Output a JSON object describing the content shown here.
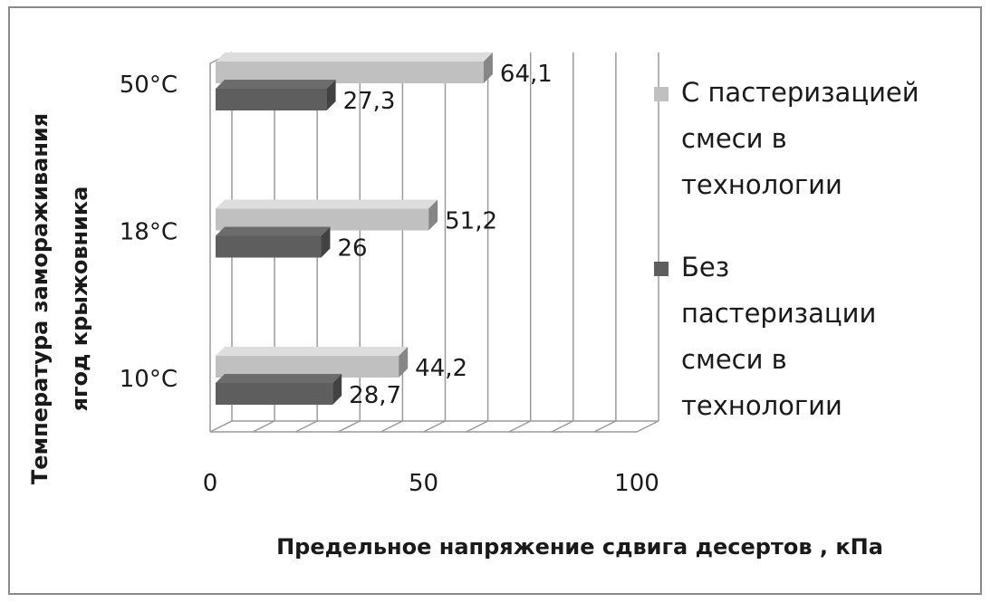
{
  "chart_data": {
    "type": "bar",
    "orientation": "horizontal",
    "three_d": true,
    "categories": [
      "10°С",
      "18°С",
      "50°С"
    ],
    "series": [
      {
        "name": "С пастеризацией смеси в технологии",
        "values": [
          44.2,
          51.2,
          64.1
        ],
        "labels": [
          "44,2",
          "51,2",
          "64,1"
        ],
        "color": "#c0c0c0"
      },
      {
        "name": "Без пастеризации смеси в технологии",
        "values": [
          28.7,
          26,
          27.3
        ],
        "labels": [
          "28,7",
          "26",
          "27,3"
        ],
        "color": "#5e5e5e"
      }
    ],
    "xlim": [
      0,
      100
    ],
    "x_ticks": [
      0,
      50,
      100
    ],
    "x_tick_labels": [
      "0",
      "50",
      "100"
    ],
    "xlabel": "Предельное напряжение сдвига десертов , кПа",
    "ylabel": "Температура замораживания ягод крыжовника",
    "grid": true,
    "legend_position": "right",
    "legend_lines": [
      [
        "С пастеризацией",
        "смеси в",
        "технологии"
      ],
      [
        "Без",
        "пастеризации",
        "смеси в",
        "технологии"
      ]
    ]
  }
}
